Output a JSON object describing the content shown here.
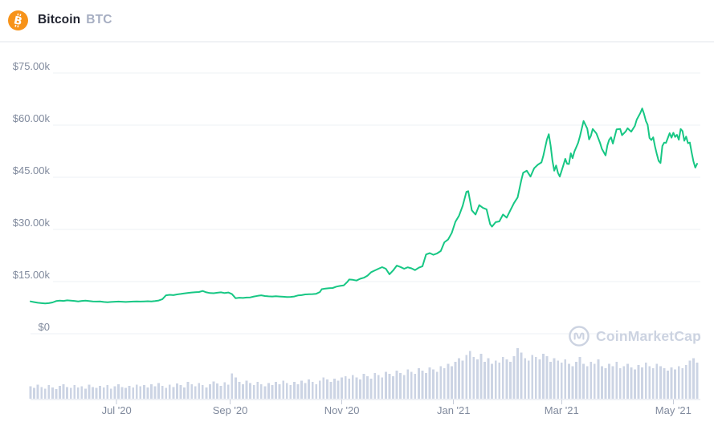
{
  "header": {
    "coin_name": "Bitcoin",
    "coin_symbol": "BTC",
    "logo_glyph": "B"
  },
  "watermark": {
    "brand": "CoinMarketCap"
  },
  "colors": {
    "price_line": "#17c784",
    "volume_bar": "#ccd4e4",
    "grid_line": "#eef1f6",
    "axis_line": "#dde2eb",
    "axis_tick": "#c6ccd9",
    "axis_label": "#808a9d",
    "coin_name": "#222531",
    "coin_symbol": "#a6aec2",
    "logo_orange": "#f7931a",
    "header_divider": "#f0f2f5",
    "watermark": "#ccd3e1"
  },
  "chart_data": {
    "type": "line",
    "title": "",
    "legend": "none",
    "grid": "horizontal",
    "ylim": [
      0,
      75000
    ],
    "days_total": 364,
    "y_ticks": [
      {
        "value": 75000,
        "label": "$75.00k"
      },
      {
        "value": 60000,
        "label": "$60.00k"
      },
      {
        "value": 45000,
        "label": "$45.00k"
      },
      {
        "value": 30000,
        "label": "$30.00k"
      },
      {
        "value": 15000,
        "label": "$15.00k"
      },
      {
        "value": 0,
        "label": "$0"
      }
    ],
    "x_ticks": [
      {
        "day": 47,
        "label": "Jul '20"
      },
      {
        "day": 109,
        "label": "Sep '20"
      },
      {
        "day": 170,
        "label": "Nov '20"
      },
      {
        "day": 231,
        "label": "Jan '21"
      },
      {
        "day": 290,
        "label": "Mar '21"
      },
      {
        "day": 351,
        "label": "May '21"
      }
    ],
    "series": [
      {
        "name": "BTC price (USD)",
        "points_day_usd": [
          [
            0,
            9300
          ],
          [
            2,
            9100
          ],
          [
            4,
            8900
          ],
          [
            6,
            8800
          ],
          [
            8,
            8700
          ],
          [
            10,
            8800
          ],
          [
            12,
            9000
          ],
          [
            14,
            9400
          ],
          [
            16,
            9500
          ],
          [
            18,
            9450
          ],
          [
            20,
            9600
          ],
          [
            22,
            9500
          ],
          [
            24,
            9450
          ],
          [
            26,
            9300
          ],
          [
            28,
            9450
          ],
          [
            30,
            9500
          ],
          [
            32,
            9400
          ],
          [
            34,
            9300
          ],
          [
            36,
            9250
          ],
          [
            38,
            9300
          ],
          [
            40,
            9150
          ],
          [
            42,
            9050
          ],
          [
            44,
            9150
          ],
          [
            46,
            9200
          ],
          [
            48,
            9250
          ],
          [
            50,
            9200
          ],
          [
            52,
            9150
          ],
          [
            54,
            9200
          ],
          [
            56,
            9250
          ],
          [
            58,
            9300
          ],
          [
            60,
            9250
          ],
          [
            62,
            9300
          ],
          [
            64,
            9350
          ],
          [
            66,
            9300
          ],
          [
            68,
            9400
          ],
          [
            70,
            9550
          ],
          [
            72,
            9950
          ],
          [
            74,
            11050
          ],
          [
            76,
            11200
          ],
          [
            78,
            11100
          ],
          [
            80,
            11300
          ],
          [
            82,
            11450
          ],
          [
            84,
            11600
          ],
          [
            86,
            11750
          ],
          [
            88,
            11850
          ],
          [
            90,
            11950
          ],
          [
            92,
            12000
          ],
          [
            94,
            12300
          ],
          [
            96,
            11900
          ],
          [
            98,
            11700
          ],
          [
            100,
            11650
          ],
          [
            102,
            11800
          ],
          [
            104,
            11900
          ],
          [
            106,
            11700
          ],
          [
            108,
            11850
          ],
          [
            110,
            11400
          ],
          [
            112,
            10200
          ],
          [
            114,
            10350
          ],
          [
            116,
            10300
          ],
          [
            118,
            10400
          ],
          [
            120,
            10450
          ],
          [
            122,
            10700
          ],
          [
            124,
            10900
          ],
          [
            126,
            11050
          ],
          [
            128,
            10850
          ],
          [
            130,
            10750
          ],
          [
            132,
            10700
          ],
          [
            134,
            10800
          ],
          [
            136,
            10700
          ],
          [
            138,
            10650
          ],
          [
            140,
            10550
          ],
          [
            142,
            10600
          ],
          [
            144,
            10700
          ],
          [
            146,
            11000
          ],
          [
            148,
            11100
          ],
          [
            150,
            11300
          ],
          [
            152,
            11350
          ],
          [
            154,
            11400
          ],
          [
            156,
            11500
          ],
          [
            158,
            12000
          ],
          [
            159,
            12800
          ],
          [
            161,
            13000
          ],
          [
            163,
            13100
          ],
          [
            165,
            13150
          ],
          [
            167,
            13550
          ],
          [
            169,
            13750
          ],
          [
            171,
            13900
          ],
          [
            173,
            14900
          ],
          [
            174,
            15600
          ],
          [
            176,
            15500
          ],
          [
            178,
            15300
          ],
          [
            180,
            15800
          ],
          [
            182,
            16100
          ],
          [
            184,
            16700
          ],
          [
            186,
            17700
          ],
          [
            188,
            18200
          ],
          [
            190,
            18700
          ],
          [
            192,
            19150
          ],
          [
            194,
            18700
          ],
          [
            196,
            17100
          ],
          [
            198,
            18200
          ],
          [
            200,
            19600
          ],
          [
            202,
            19200
          ],
          [
            204,
            18700
          ],
          [
            206,
            19100
          ],
          [
            208,
            18800
          ],
          [
            210,
            18300
          ],
          [
            212,
            19000
          ],
          [
            214,
            19400
          ],
          [
            216,
            22800
          ],
          [
            218,
            23200
          ],
          [
            220,
            22700
          ],
          [
            222,
            23100
          ],
          [
            224,
            23800
          ],
          [
            226,
            26300
          ],
          [
            228,
            27100
          ],
          [
            230,
            29000
          ],
          [
            232,
            32200
          ],
          [
            234,
            34000
          ],
          [
            236,
            36800
          ],
          [
            238,
            40800
          ],
          [
            239,
            41000
          ],
          [
            240,
            38200
          ],
          [
            241,
            35500
          ],
          [
            243,
            34300
          ],
          [
            245,
            37000
          ],
          [
            247,
            36200
          ],
          [
            249,
            35800
          ],
          [
            251,
            31500
          ],
          [
            252,
            30800
          ],
          [
            254,
            32100
          ],
          [
            256,
            32300
          ],
          [
            258,
            34300
          ],
          [
            260,
            33400
          ],
          [
            262,
            35500
          ],
          [
            264,
            37600
          ],
          [
            266,
            39200
          ],
          [
            268,
            44200
          ],
          [
            269,
            46300
          ],
          [
            271,
            46900
          ],
          [
            273,
            45200
          ],
          [
            275,
            47600
          ],
          [
            277,
            48600
          ],
          [
            279,
            49300
          ],
          [
            280,
            51200
          ],
          [
            282,
            55900
          ],
          [
            283,
            57400
          ],
          [
            284,
            54100
          ],
          [
            285,
            49700
          ],
          [
            286,
            46900
          ],
          [
            287,
            48400
          ],
          [
            288,
            46300
          ],
          [
            289,
            45200
          ],
          [
            291,
            48500
          ],
          [
            292,
            50300
          ],
          [
            293,
            48900
          ],
          [
            294,
            48800
          ],
          [
            295,
            51900
          ],
          [
            296,
            50500
          ],
          [
            297,
            52400
          ],
          [
            299,
            54900
          ],
          [
            300,
            56800
          ],
          [
            302,
            61200
          ],
          [
            304,
            59000
          ],
          [
            305,
            55900
          ],
          [
            306,
            56900
          ],
          [
            307,
            58900
          ],
          [
            309,
            57600
          ],
          [
            311,
            54900
          ],
          [
            312,
            53200
          ],
          [
            314,
            51300
          ],
          [
            315,
            54200
          ],
          [
            316,
            55800
          ],
          [
            317,
            56500
          ],
          [
            318,
            54700
          ],
          [
            320,
            58800
          ],
          [
            322,
            58900
          ],
          [
            323,
            57100
          ],
          [
            325,
            58200
          ],
          [
            326,
            59100
          ],
          [
            328,
            58100
          ],
          [
            330,
            59800
          ],
          [
            331,
            61600
          ],
          [
            333,
            63500
          ],
          [
            334,
            64800
          ],
          [
            335,
            63200
          ],
          [
            336,
            61200
          ],
          [
            337,
            60100
          ],
          [
            338,
            56300
          ],
          [
            339,
            55700
          ],
          [
            340,
            56500
          ],
          [
            341,
            53800
          ],
          [
            342,
            51700
          ],
          [
            343,
            49700
          ],
          [
            344,
            49100
          ],
          [
            345,
            54000
          ],
          [
            346,
            55000
          ],
          [
            347,
            54900
          ],
          [
            349,
            57700
          ],
          [
            350,
            56400
          ],
          [
            351,
            57800
          ],
          [
            352,
            56600
          ],
          [
            353,
            57200
          ],
          [
            354,
            55800
          ],
          [
            355,
            58900
          ],
          [
            356,
            58300
          ],
          [
            357,
            55500
          ],
          [
            358,
            56700
          ],
          [
            359,
            54800
          ],
          [
            360,
            55000
          ],
          [
            361,
            52100
          ],
          [
            362,
            49600
          ],
          [
            363,
            47800
          ],
          [
            364,
            48900
          ]
        ]
      }
    ],
    "volume_series": {
      "name": "24h volume (relative height, no axis shown)",
      "start_day": 0,
      "step_days": 2,
      "values": [
        22,
        19,
        25,
        21,
        18,
        24,
        20,
        17,
        23,
        26,
        21,
        19,
        24,
        20,
        22,
        18,
        25,
        21,
        19,
        23,
        20,
        24,
        18,
        22,
        26,
        21,
        19,
        23,
        20,
        25,
        22,
        24,
        20,
        26,
        22,
        28,
        23,
        19,
        25,
        21,
        27,
        24,
        20,
        30,
        26,
        22,
        28,
        24,
        20,
        26,
        31,
        27,
        23,
        29,
        25,
        45,
        38,
        30,
        26,
        32,
        28,
        24,
        30,
        26,
        22,
        28,
        24,
        30,
        26,
        32,
        28,
        24,
        30,
        26,
        32,
        28,
        34,
        30,
        26,
        32,
        38,
        34,
        30,
        36,
        32,
        38,
        40,
        36,
        42,
        38,
        34,
        44,
        40,
        36,
        46,
        42,
        38,
        48,
        44,
        40,
        50,
        46,
        42,
        52,
        48,
        44,
        54,
        50,
        46,
        56,
        52,
        48,
        58,
        54,
        62,
        58,
        66,
        72,
        68,
        78,
        85,
        74,
        70,
        80,
        66,
        72,
        62,
        68,
        64,
        74,
        70,
        66,
        76,
        90,
        82,
        72,
        68,
        78,
        74,
        70,
        80,
        76,
        66,
        72,
        68,
        64,
        70,
        62,
        58,
        66,
        74,
        62,
        58,
        66,
        62,
        70,
        58,
        54,
        62,
        58,
        66,
        54,
        58,
        62,
        56,
        52,
        60,
        56,
        64,
        58,
        54,
        62,
        58,
        54,
        50,
        56,
        52,
        58,
        54,
        60,
        68,
        72,
        64
      ]
    }
  }
}
